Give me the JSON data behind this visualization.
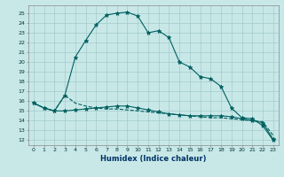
{
  "xlabel": "Humidex (Indice chaleur)",
  "bg_color": "#c8e8e8",
  "grid_color": "#a0c8c8",
  "line_color": "#006060",
  "xlim": [
    -0.5,
    23.5
  ],
  "ylim": [
    11.5,
    25.8
  ],
  "yticks": [
    12,
    13,
    14,
    15,
    16,
    17,
    18,
    19,
    20,
    21,
    22,
    23,
    24,
    25
  ],
  "xticks": [
    0,
    1,
    2,
    3,
    4,
    5,
    6,
    7,
    8,
    9,
    10,
    11,
    12,
    13,
    14,
    15,
    16,
    17,
    18,
    19,
    20,
    21,
    22,
    23
  ],
  "line1_x": [
    0,
    1,
    2,
    3,
    4,
    5,
    6,
    7,
    8,
    9,
    10,
    11,
    12,
    13,
    14,
    15,
    16,
    17,
    18,
    19,
    20,
    21,
    22,
    23
  ],
  "line1_y": [
    15.8,
    15.3,
    15.0,
    16.6,
    20.5,
    22.2,
    23.8,
    24.8,
    25.0,
    25.1,
    24.7,
    23.0,
    23.2,
    22.5,
    20.0,
    19.5,
    18.5,
    18.3,
    17.5,
    15.3,
    14.3,
    14.2,
    13.5,
    12.0
  ],
  "line2_x": [
    0,
    1,
    2,
    3,
    4,
    5,
    6,
    7,
    8,
    9,
    10,
    11,
    12,
    13,
    14,
    15,
    16,
    17,
    18,
    19,
    20,
    21,
    22,
    23
  ],
  "line2_y": [
    15.8,
    15.3,
    15.0,
    15.0,
    15.1,
    15.2,
    15.3,
    15.4,
    15.5,
    15.5,
    15.3,
    15.1,
    14.9,
    14.7,
    14.6,
    14.5,
    14.5,
    14.5,
    14.5,
    14.4,
    14.2,
    14.0,
    13.8,
    12.1
  ],
  "line3_x": [
    0,
    1,
    2,
    3,
    4,
    5,
    6,
    7,
    8,
    9,
    10,
    11,
    12,
    13,
    14,
    15,
    16,
    17,
    18,
    19,
    20,
    21,
    22,
    23
  ],
  "line3_y": [
    15.8,
    15.3,
    15.0,
    16.6,
    15.8,
    15.5,
    15.3,
    15.2,
    15.2,
    15.1,
    15.0,
    14.9,
    14.8,
    14.7,
    14.6,
    14.5,
    14.4,
    14.3,
    14.3,
    14.2,
    14.1,
    14.0,
    13.9,
    12.5
  ]
}
